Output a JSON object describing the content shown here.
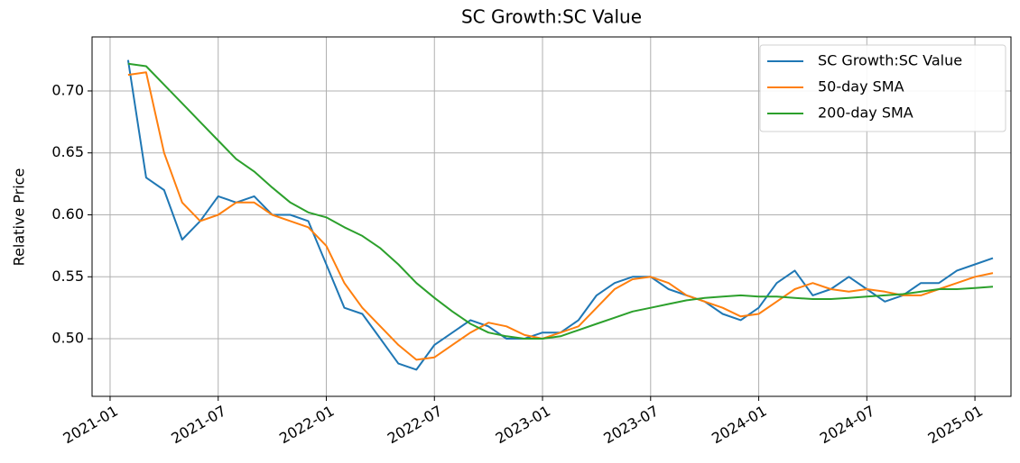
{
  "chart_data": {
    "type": "line",
    "title": "SC Growth:SC Value",
    "y_label": "Relative Price",
    "x": [
      "2021-02",
      "2021-03",
      "2021-04",
      "2021-05",
      "2021-06",
      "2021-07",
      "2021-08",
      "2021-09",
      "2021-10",
      "2021-11",
      "2021-12",
      "2022-01",
      "2022-02",
      "2022-03",
      "2022-04",
      "2022-05",
      "2022-06",
      "2022-07",
      "2022-08",
      "2022-09",
      "2022-10",
      "2022-11",
      "2022-12",
      "2023-01",
      "2023-02",
      "2023-03",
      "2023-04",
      "2023-05",
      "2023-06",
      "2023-07",
      "2023-08",
      "2023-09",
      "2023-10",
      "2023-11",
      "2023-12",
      "2024-01",
      "2024-02",
      "2024-03",
      "2024-04",
      "2024-05",
      "2024-06",
      "2024-07",
      "2024-08",
      "2024-09",
      "2024-10",
      "2024-11",
      "2024-12",
      "2025-01",
      "2025-02"
    ],
    "series": [
      {
        "name": "SC Growth:SC Value",
        "color": "#1f77b4",
        "values": [
          0.725,
          0.63,
          0.62,
          0.58,
          0.595,
          0.615,
          0.61,
          0.615,
          0.6,
          0.6,
          0.595,
          0.56,
          0.525,
          0.52,
          0.5,
          0.48,
          0.475,
          0.495,
          0.505,
          0.515,
          0.51,
          0.5,
          0.5,
          0.505,
          0.505,
          0.515,
          0.535,
          0.545,
          0.55,
          0.55,
          0.54,
          0.535,
          0.53,
          0.52,
          0.515,
          0.525,
          0.545,
          0.555,
          0.535,
          0.54,
          0.55,
          0.54,
          0.53,
          0.535,
          0.545,
          0.545,
          0.555,
          0.56,
          0.565
        ]
      },
      {
        "name": "50-day SMA",
        "color": "#ff7f0e",
        "values": [
          0.713,
          0.715,
          0.65,
          0.61,
          0.595,
          0.6,
          0.61,
          0.61,
          0.6,
          0.595,
          0.59,
          0.575,
          0.545,
          0.525,
          0.51,
          0.495,
          0.483,
          0.485,
          0.495,
          0.505,
          0.513,
          0.51,
          0.503,
          0.5,
          0.505,
          0.51,
          0.525,
          0.54,
          0.548,
          0.55,
          0.545,
          0.535,
          0.53,
          0.525,
          0.518,
          0.52,
          0.53,
          0.54,
          0.545,
          0.54,
          0.538,
          0.54,
          0.538,
          0.535,
          0.535,
          0.54,
          0.545,
          0.55,
          0.553
        ]
      },
      {
        "name": "200-day SMA",
        "color": "#2ca02c",
        "values": [
          0.722,
          0.72,
          0.705,
          0.69,
          0.675,
          0.66,
          0.645,
          0.635,
          0.622,
          0.61,
          0.602,
          0.598,
          0.59,
          0.583,
          0.573,
          0.56,
          0.545,
          0.533,
          0.522,
          0.512,
          0.505,
          0.502,
          0.5,
          0.5,
          0.502,
          0.507,
          0.512,
          0.517,
          0.522,
          0.525,
          0.528,
          0.531,
          0.533,
          0.534,
          0.535,
          0.534,
          0.534,
          0.533,
          0.532,
          0.532,
          0.533,
          0.534,
          0.535,
          0.536,
          0.538,
          0.54,
          0.54,
          0.541,
          0.542
        ]
      }
    ],
    "xlim": [
      "2020-12",
      "2025-03"
    ],
    "xticks": [
      "2021-01",
      "2021-07",
      "2022-01",
      "2022-07",
      "2023-01",
      "2023-07",
      "2024-01",
      "2024-07",
      "2025-01"
    ],
    "ylim": [
      0.4535,
      0.7436
    ],
    "yticks": [
      {
        "value": 0.5,
        "label": "0.50"
      },
      {
        "value": 0.55,
        "label": "0.55"
      },
      {
        "value": 0.6,
        "label": "0.60"
      },
      {
        "value": 0.65,
        "label": "0.65"
      },
      {
        "value": 0.7,
        "label": "0.70"
      }
    ],
    "grid": true,
    "legend": "upper right"
  }
}
